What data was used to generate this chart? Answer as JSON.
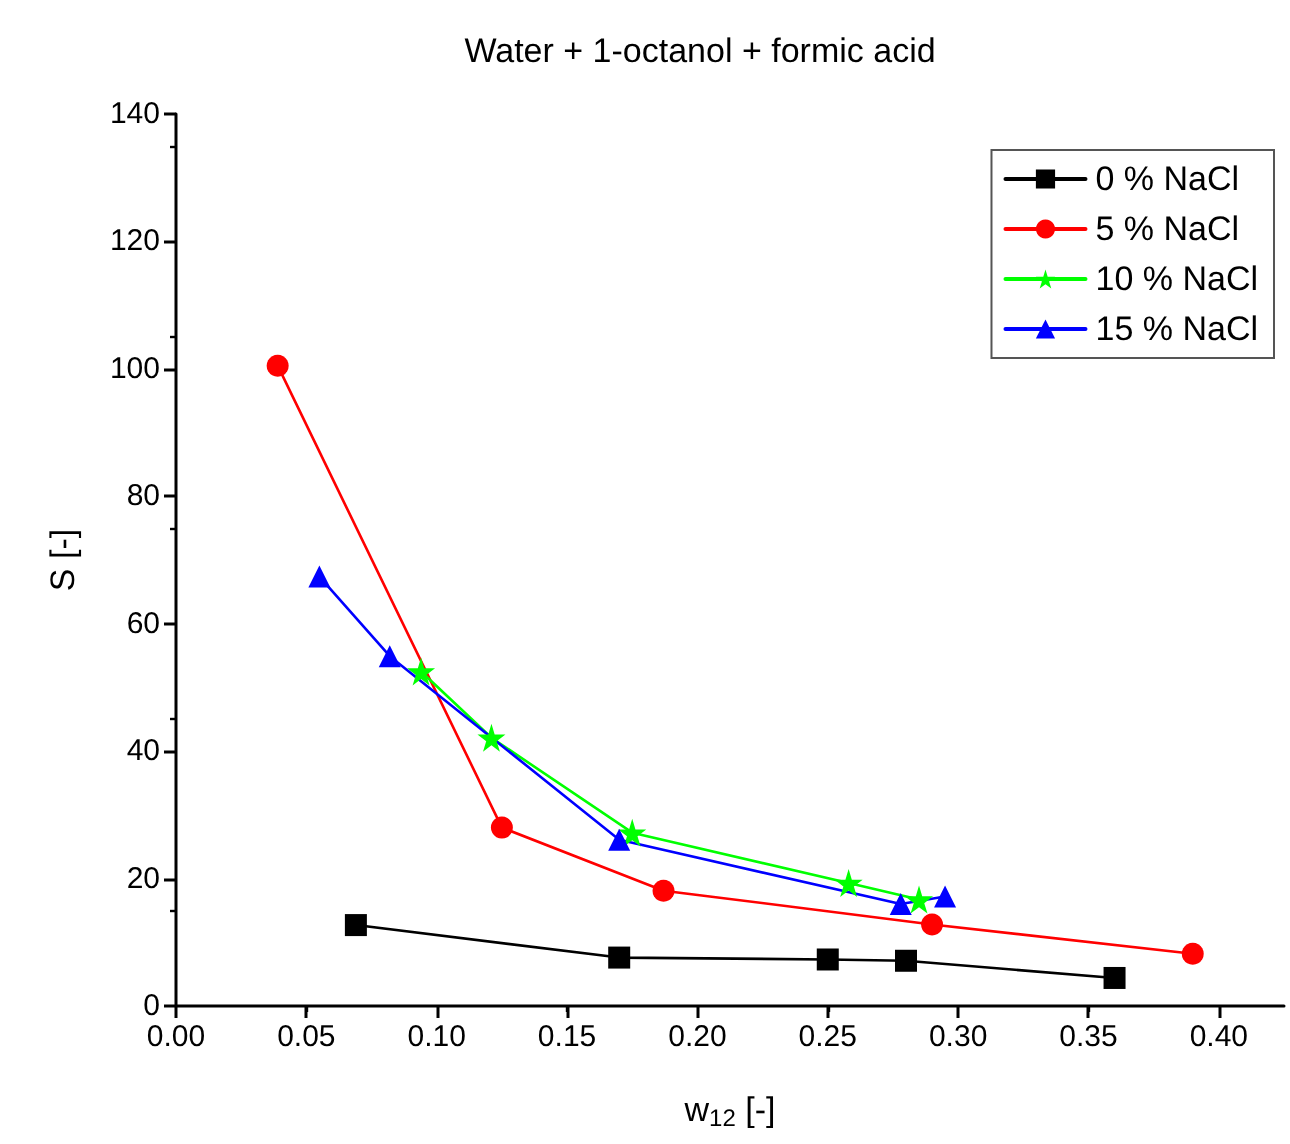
{
  "chart_data": {
    "type": "line",
    "title": "Water + 1-octanol + formic acid",
    "xlabel": "w$_{12}$ [-]",
    "ylabel": "S [-]",
    "xlim": [
      0,
      0.425
    ],
    "xticks": [
      {
        "value": 0,
        "label": "0.00"
      },
      {
        "value": 0.05,
        "label": "0.05"
      },
      {
        "value": 0.1,
        "label": "0.10"
      },
      {
        "value": 0.15,
        "label": "0.15"
      },
      {
        "value": 0.2,
        "label": "0.20"
      },
      {
        "value": 0.25,
        "label": "0.25"
      },
      {
        "value": 0.3,
        "label": "0.30"
      },
      {
        "value": 0.35,
        "label": "0.35"
      },
      {
        "value": 0.4,
        "label": "0.40"
      }
    ],
    "ylim": [
      0,
      140
    ],
    "yticks": [
      0,
      20,
      40,
      60,
      80,
      100,
      120,
      140
    ],
    "grid": false,
    "legend": "top right",
    "series": [
      {
        "name": "0 % NaCl",
        "color": "#000000",
        "marker": "square",
        "x": [
          0.069,
          0.17,
          0.25,
          0.28,
          0.36
        ],
        "values": [
          12.7,
          7.6,
          7.3,
          7.1,
          4.4
        ]
      },
      {
        "name": "5 % NaCl",
        "color": "#ff0000",
        "marker": "circle",
        "x": [
          0.039,
          0.125,
          0.187,
          0.29,
          0.39
        ],
        "values": [
          100.5,
          28.0,
          18.1,
          12.8,
          8.2
        ]
      },
      {
        "name": "10 % NaCl",
        "color": "#00ff00",
        "marker": "star",
        "x": [
          0.094,
          0.121,
          0.175,
          0.258,
          0.285
        ],
        "values": [
          52.5,
          42.1,
          27.2,
          19.3,
          16.7
        ]
      },
      {
        "name": "15 % NaCl",
        "color": "#0000ff",
        "marker": "triangle",
        "x": [
          0.055,
          0.082,
          0.17,
          0.278,
          0.295
        ],
        "values": [
          67.4,
          54.9,
          26.1,
          16.0,
          17.2
        ]
      }
    ]
  }
}
